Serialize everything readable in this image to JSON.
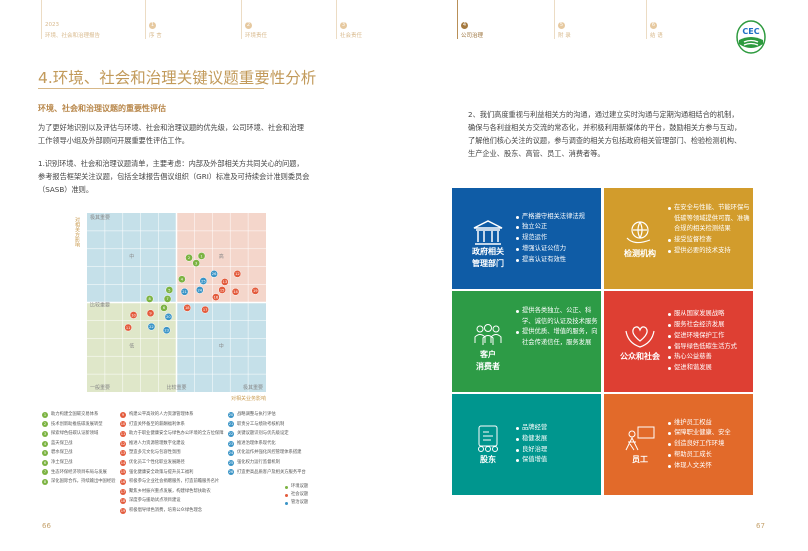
{
  "header": {
    "year": "2023",
    "report": "环境、社会和治理报告",
    "nav": [
      {
        "num": "1",
        "label": "序 言"
      },
      {
        "num": "2",
        "label": "环境责任"
      },
      {
        "num": "3",
        "label": "社会责任"
      },
      {
        "num": "4",
        "label": "公司治理",
        "active": true
      },
      {
        "num": "5",
        "label": "附 录"
      },
      {
        "num": "6",
        "label": "结 语"
      }
    ],
    "logo_text": "CEC"
  },
  "left": {
    "title": "4.环境、社会和治理关键议题重要性分析",
    "subtitle": "环境、社会和治理议题的重要性评估",
    "p1": "为了更好地识别以及评估与环境、社会和治理议题的优先级，公司环境、社会和治理工作领导小组及外部顾问开展重要性评估工作。",
    "p2": "1.识别环境、社会和治理议题清单，主要考虑：内部及外部相关方共同关心的问题，参考报告框架关注议题，包括全球报告倡议组织（GRI）标准及可持续会计准则委员会（SASB）准则。",
    "page": "66"
  },
  "chart_data": {
    "type": "scatter",
    "ylabel": "对相关方影响",
    "xlabel": "对相关业务影响",
    "xlim": [
      0,
      10
    ],
    "ylim": [
      0,
      10
    ],
    "grid": true,
    "y_ticks": [
      "极其重要",
      "比较重要"
    ],
    "x_ticks": [
      "一般重要",
      "比较重要",
      "极其重要"
    ],
    "quadrants": {
      "top_left": "中",
      "top_right": "高",
      "bottom_left": "低",
      "bottom_right": "中"
    },
    "colors": {
      "环境议题": "#7cb342",
      "社会议题": "#e35b3c",
      "管治议题": "#3a94c6",
      "quad_blue": "#c5e0e9",
      "quad_pink": "#f4d6cb",
      "quad_green": "#dfe7c9"
    },
    "points": [
      {
        "id": "1",
        "cat": "环境议题",
        "x": 6.4,
        "y": 7.6
      },
      {
        "id": "2",
        "cat": "环境议题",
        "x": 5.7,
        "y": 7.5
      },
      {
        "id": "3",
        "cat": "环境议题",
        "x": 6.1,
        "y": 7.2
      },
      {
        "id": "4",
        "cat": "环境议题",
        "x": 5.3,
        "y": 6.3
      },
      {
        "id": "5",
        "cat": "环境议题",
        "x": 4.6,
        "y": 5.7
      },
      {
        "id": "6",
        "cat": "环境议题",
        "x": 4.3,
        "y": 4.7
      },
      {
        "id": "7",
        "cat": "环境议题",
        "x": 4.5,
        "y": 5.2
      },
      {
        "id": "8",
        "cat": "环境议题",
        "x": 3.5,
        "y": 5.2
      },
      {
        "id": "9",
        "cat": "社会议题",
        "x": 3.55,
        "y": 4.4
      },
      {
        "id": "10",
        "cat": "社会议题",
        "x": 2.6,
        "y": 4.3
      },
      {
        "id": "11",
        "cat": "社会议题",
        "x": 2.3,
        "y": 3.6
      },
      {
        "id": "12",
        "cat": "社会议题",
        "x": 8.4,
        "y": 6.6
      },
      {
        "id": "13",
        "cat": "社会议题",
        "x": 7.7,
        "y": 6.15
      },
      {
        "id": "14",
        "cat": "社会议题",
        "x": 8.3,
        "y": 5.6
      },
      {
        "id": "15",
        "cat": "社会议题",
        "x": 7.55,
        "y": 5.7
      },
      {
        "id": "16",
        "cat": "社会议题",
        "x": 7.2,
        "y": 5.3
      },
      {
        "id": "17",
        "cat": "社会议题",
        "x": 6.6,
        "y": 4.6
      },
      {
        "id": "18",
        "cat": "社会议题",
        "x": 5.6,
        "y": 4.7
      },
      {
        "id": "19",
        "cat": "社会议题",
        "x": 9.4,
        "y": 5.65
      },
      {
        "id": "20",
        "cat": "管治议题",
        "x": 4.55,
        "y": 4.2
      },
      {
        "id": "21",
        "cat": "管治议题",
        "x": 5.45,
        "y": 5.6
      },
      {
        "id": "22",
        "cat": "管治议题",
        "x": 3.6,
        "y": 3.65
      },
      {
        "id": "23",
        "cat": "管治议题",
        "x": 4.45,
        "y": 3.45
      },
      {
        "id": "24",
        "cat": "管治议题",
        "x": 6.3,
        "y": 5.7
      },
      {
        "id": "25",
        "cat": "管治议题",
        "x": 6.5,
        "y": 6.2
      },
      {
        "id": "26",
        "cat": "管治议题",
        "x": 7.1,
        "y": 6.6
      }
    ],
    "legend": [
      "环境议题",
      "社会议题",
      "管治议题"
    ],
    "issues": [
      "助力构建全国碳交易体系",
      "技术创新助推低碳发展转型",
      "探索绿色低碳认证新领域",
      "蓝天保卫战",
      "碧水保卫战",
      "净土保卫战",
      "生态环保经济项目布局与发展",
      "深化国际合作，持续输出中国经验",
      "构建公平高效的人力资源管理体系",
      "打造关怀备至的薪酬福利体系",
      "助力于职业健康安全与绿色办公环境的全方位保障",
      "推进人力资源管理数字化建设",
      "塑造多元文化与包容性氛围",
      "优化员工个性化职业发展路径",
      "强化健康安全政策与提升员工福利",
      "积极参与企业社会捐赠服务，打造前瞻服务名片",
      "聚焦乡村振兴重点发展，构建绿色帮扶助农",
      "深度参与援助试点项目建设",
      "积极倡导绿色消费，培育公众绿色理念",
      "战略调整与执行评估",
      "职责分工与绩效考核机制",
      "关键议题识别与优先级设定",
      "推进治理体系现代化",
      "优化运作并强化风控管理体系搭建",
      "强化权力运行监督机制",
      "打造更高品质客户及相关方服务平台"
    ]
  },
  "right": {
    "p": "2、我们高度重视与利益相关方的沟通，通过建立实时沟通与定期沟通相结合的机制，确保与各利益相关方交流的常态化，并积极利用新媒体的平台，鼓励相关方参与互动，了解他们核心关注的议题，参与调查的相关方包括政府相关管理部门、检验检测机构、生产企业、股东、高管、员工、消费者等。",
    "page": "67",
    "boxes": [
      {
        "name": "政府相关\n管理部门",
        "icon": "government-building-icon",
        "color": "#0f5ca6",
        "items": [
          "严格遵守相关法律法规",
          "独立公正",
          "规范运作",
          "增强认证公信力",
          "提高认证有效性"
        ]
      },
      {
        "name": "检测机构",
        "icon": "globe-hand-icon",
        "color": "#d29c2c",
        "items": [
          "在安全与性能、节能环保与低碳等领域提供可靠、准确合规的相关检测结果",
          "接受监督检查",
          "提供必要的技术支持"
        ]
      },
      {
        "name": "客户\n消费者",
        "icon": "people-group-icon",
        "color": "#2d9b46",
        "items": [
          "提供各类独立、公正、科学、诚信的认证及技术服务",
          "提供优质、增值的服务，向社会传递信任，服务发展"
        ]
      },
      {
        "name": "公众和社会",
        "icon": "heart-hands-icon",
        "color": "#de3f33",
        "items": [
          "服从国家发展战略",
          "服务社会经济发展",
          "促进环境保护工作",
          "倡导绿色低碳生活方式",
          "热心公益慈善",
          "促进和谐发展"
        ]
      },
      {
        "name": "股东",
        "icon": "certificate-icon",
        "color": "#00968e",
        "items": [
          "品牌经营",
          "稳健发展",
          "良好治理",
          "保值增值"
        ]
      },
      {
        "name": "员工",
        "icon": "employee-presentation-icon",
        "color": "#e26a2a",
        "items": [
          "维护员工权益",
          "保障职业健康、安全",
          "创造良好工作环境",
          "帮助员工成长",
          "体现人文关怀"
        ]
      }
    ]
  }
}
